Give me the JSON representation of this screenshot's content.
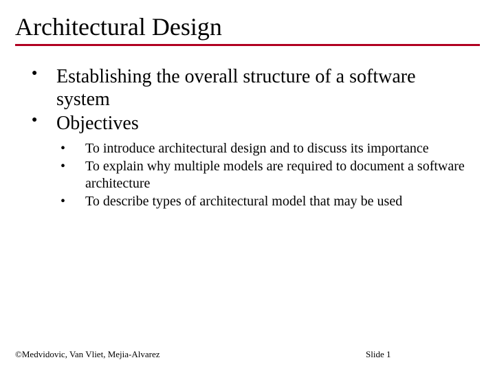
{
  "slide": {
    "title": "Architectural Design",
    "title_fontsize": 36,
    "title_underline_color": "#b00020",
    "title_underline_width": 3,
    "bullets": [
      {
        "text": "Establishing the overall structure of a software system"
      },
      {
        "text": "Objectives",
        "sub": [
          {
            "text": "To introduce architectural design and to discuss its importance"
          },
          {
            "text": "To explain why multiple models are required to document a software architecture"
          },
          {
            "text": "To describe types of architectural model that may be used"
          }
        ]
      }
    ],
    "footer_left": "©Medvidovic, Van Vliet, Mejia-Alvarez",
    "footer_center": "Slide 1"
  },
  "colors": {
    "background": "#ffffff",
    "text": "#000000",
    "accent": "#b00020"
  },
  "typography": {
    "body_font": "Georgia, 'Times New Roman', serif",
    "title_fontsize": 36,
    "bullet_fontsize": 28,
    "subbullet_fontsize": 20,
    "footer_fontsize": 13
  }
}
